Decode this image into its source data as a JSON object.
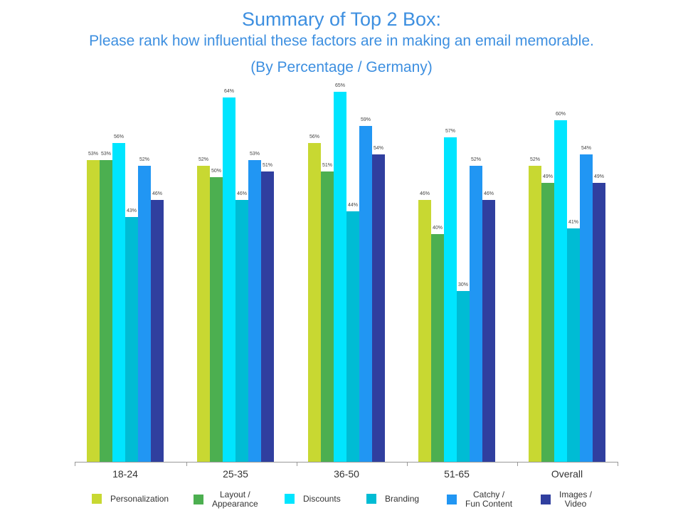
{
  "chart_data": {
    "type": "bar",
    "title": "Summary of Top 2 Box:",
    "subtitle": "Please rank how influential these factors are in making an email memorable.",
    "note": "(By Percentage / Germany)",
    "categories": [
      "18-24",
      "25-35",
      "36-50",
      "51-65",
      "Overall"
    ],
    "series": [
      {
        "name": "Personalization",
        "color": "#c8d832",
        "values": [
          53,
          52,
          56,
          46,
          52
        ]
      },
      {
        "name": "Layout / Appearance",
        "color": "#4caf50",
        "values": [
          53,
          50,
          51,
          40,
          49
        ]
      },
      {
        "name": "Discounts",
        "color": "#00e5ff",
        "values": [
          56,
          64,
          65,
          57,
          60
        ]
      },
      {
        "name": "Branding",
        "color": "#00bcd4",
        "values": [
          43,
          46,
          44,
          30,
          41
        ]
      },
      {
        "name": "Catchy / Fun Content",
        "color": "#2196f3",
        "values": [
          52,
          53,
          59,
          52,
          54
        ]
      },
      {
        "name": "Images / Video",
        "color": "#303f9f",
        "values": [
          46,
          51,
          54,
          46,
          49
        ]
      }
    ],
    "ylim": [
      0,
      65
    ],
    "value_suffix": "%",
    "grid": false,
    "legend_position": "bottom"
  },
  "legend": [
    {
      "label": "Personalization",
      "color": "#c8d832"
    },
    {
      "label": "Layout /\nAppearance",
      "color": "#4caf50"
    },
    {
      "label": "Discounts",
      "color": "#00e5ff"
    },
    {
      "label": "Branding",
      "color": "#00bcd4"
    },
    {
      "label": "Catchy /\nFun Content",
      "color": "#2196f3"
    },
    {
      "label": "Images /\nVideo",
      "color": "#303f9f"
    }
  ]
}
